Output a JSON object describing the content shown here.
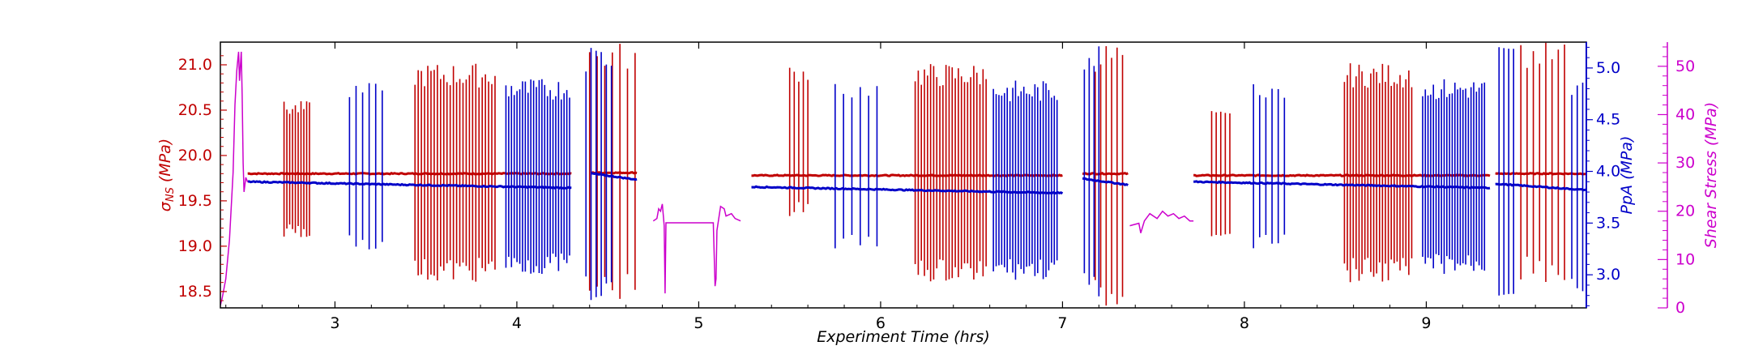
{
  "chart_data": {
    "type": "line",
    "x_axis": {
      "label": "Experiment Time (hrs)",
      "range": [
        2.37,
        9.88
      ],
      "ticks": [
        3,
        4,
        5,
        6,
        7,
        8,
        9
      ],
      "tick_labels": [
        "3",
        "4",
        "5",
        "6",
        "7",
        "8",
        "9"
      ]
    },
    "y_axes": [
      {
        "id": "sigma",
        "label": "σNS (MPa)",
        "label_main": "σ",
        "label_sub": "NS",
        "label_rest": " (MPa)",
        "side": "left",
        "color": "#c00000",
        "range": [
          18.32,
          21.25
        ],
        "ticks": [
          18.5,
          19.0,
          19.5,
          20.0,
          20.5,
          21.0
        ],
        "tick_labels": [
          "18.5",
          "19.0",
          "19.5",
          "20.0",
          "20.5",
          "21.0"
        ]
      },
      {
        "id": "ppa",
        "label": "PpA (MPa)",
        "side": "right",
        "color": "#0000c8",
        "range": [
          2.68,
          5.25
        ],
        "ticks": [
          3.0,
          3.5,
          4.0,
          4.5,
          5.0
        ],
        "tick_labels": [
          "3.0",
          "3.5",
          "4.0",
          "4.5",
          "5.0"
        ]
      },
      {
        "id": "shear",
        "label": "Shear Stress (MPa)",
        "side": "right-offset",
        "color": "#cc00cc",
        "range": [
          0,
          55
        ],
        "ticks": [
          0,
          10,
          20,
          30,
          40,
          50
        ],
        "tick_labels": [
          "0",
          "10",
          "20",
          "30",
          "40",
          "50"
        ]
      }
    ],
    "series": [
      {
        "axis": "sigma",
        "color": "#c00000",
        "baselines": [
          {
            "x0": 2.52,
            "x1": 4.3,
            "y": 19.8
          },
          {
            "x0": 4.41,
            "x1": 4.66,
            "y": 19.81
          },
          {
            "x0": 5.29,
            "x1": 7.0,
            "y": 19.78
          },
          {
            "x0": 7.11,
            "x1": 7.36,
            "y": 19.8
          },
          {
            "x0": 7.72,
            "x1": 9.35,
            "y": 19.78
          },
          {
            "x0": 9.38,
            "x1": 9.88,
            "y": 19.8
          }
        ],
        "spike_groups": [
          {
            "x0": 2.72,
            "x1": 2.86,
            "n": 10,
            "lo": 19.1,
            "hi": 20.6
          },
          {
            "x0": 3.44,
            "x1": 3.88,
            "n": 26,
            "lo": 18.6,
            "hi": 21.02
          },
          {
            "x0": 4.4,
            "x1": 4.65,
            "n": 7,
            "lo": 18.4,
            "hi": 21.25
          },
          {
            "x0": 5.5,
            "x1": 5.6,
            "n": 5,
            "lo": 19.3,
            "hi": 21.0
          },
          {
            "x0": 6.19,
            "x1": 6.58,
            "n": 24,
            "lo": 18.6,
            "hi": 21.02
          },
          {
            "x0": 7.18,
            "x1": 7.33,
            "n": 6,
            "lo": 18.3,
            "hi": 21.25
          },
          {
            "x0": 7.82,
            "x1": 7.92,
            "n": 5,
            "lo": 19.1,
            "hi": 20.5
          },
          {
            "x0": 8.55,
            "x1": 8.92,
            "n": 24,
            "lo": 18.6,
            "hi": 21.02
          },
          {
            "x0": 9.52,
            "x1": 9.76,
            "n": 8,
            "lo": 18.6,
            "hi": 21.25
          }
        ]
      },
      {
        "axis": "ppa",
        "color": "#0000c8",
        "baselines": [
          {
            "x0": 2.52,
            "x1": 4.3,
            "y": 3.9
          },
          {
            "x0": 4.41,
            "x1": 4.66,
            "y": 3.98
          },
          {
            "x0": 5.29,
            "x1": 7.0,
            "y": 3.85
          },
          {
            "x0": 7.11,
            "x1": 7.36,
            "y": 3.93
          },
          {
            "x0": 7.72,
            "x1": 9.35,
            "y": 3.9
          },
          {
            "x0": 9.38,
            "x1": 9.88,
            "y": 3.88
          }
        ],
        "spike_groups": [
          {
            "x0": 3.08,
            "x1": 3.26,
            "n": 6,
            "lo": 3.2,
            "hi": 4.9
          },
          {
            "x0": 3.94,
            "x1": 4.29,
            "n": 24,
            "lo": 3.0,
            "hi": 4.9
          },
          {
            "x0": 4.38,
            "x1": 4.52,
            "n": 6,
            "lo": 2.7,
            "hi": 5.25
          },
          {
            "x0": 5.75,
            "x1": 5.98,
            "n": 6,
            "lo": 3.2,
            "hi": 4.9
          },
          {
            "x0": 6.62,
            "x1": 6.97,
            "n": 24,
            "lo": 2.95,
            "hi": 4.88
          },
          {
            "x0": 7.12,
            "x1": 7.2,
            "n": 4,
            "lo": 2.75,
            "hi": 5.25
          },
          {
            "x0": 8.05,
            "x1": 8.22,
            "n": 6,
            "lo": 3.2,
            "hi": 4.9
          },
          {
            "x0": 8.98,
            "x1": 9.32,
            "n": 24,
            "lo": 3.0,
            "hi": 4.9
          },
          {
            "x0": 9.4,
            "x1": 9.48,
            "n": 4,
            "lo": 2.75,
            "hi": 5.25
          },
          {
            "x0": 9.8,
            "x1": 9.86,
            "n": 3,
            "lo": 2.8,
            "hi": 4.9
          }
        ]
      },
      {
        "axis": "shear",
        "color": "#cc00cc",
        "polylines": [
          [
            [
              2.37,
              0.5
            ],
            [
              2.38,
              2
            ],
            [
              2.4,
              6
            ],
            [
              2.42,
              14
            ],
            [
              2.44,
              28
            ],
            [
              2.45,
              42
            ],
            [
              2.46,
              49
            ],
            [
              2.465,
              51
            ],
            [
              2.47,
              53
            ],
            [
              2.475,
              47
            ],
            [
              2.48,
              50
            ],
            [
              2.485,
              53
            ],
            [
              2.49,
              44
            ],
            [
              2.495,
              30
            ],
            [
              2.5,
              24
            ],
            [
              2.51,
              27
            ],
            [
              2.52,
              26
            ]
          ],
          [
            [
              4.75,
              18
            ],
            [
              4.77,
              18.5
            ],
            [
              4.78,
              20.5
            ],
            [
              4.79,
              20
            ],
            [
              4.8,
              21.5
            ],
            [
              4.81,
              17
            ],
            [
              4.815,
              3
            ],
            [
              4.82,
              17.6
            ],
            [
              5.08,
              17.6
            ],
            [
              5.09,
              4.5
            ],
            [
              5.095,
              6
            ],
            [
              5.1,
              16
            ],
            [
              5.12,
              21
            ],
            [
              5.14,
              20.5
            ],
            [
              5.15,
              19
            ],
            [
              5.18,
              19.5
            ],
            [
              5.2,
              18.5
            ],
            [
              5.23,
              18
            ]
          ],
          [
            [
              7.37,
              17
            ],
            [
              7.42,
              17.5
            ],
            [
              7.43,
              15.5
            ],
            [
              7.45,
              18
            ],
            [
              7.48,
              19.5
            ],
            [
              7.52,
              18.5
            ],
            [
              7.55,
              20
            ],
            [
              7.58,
              19
            ],
            [
              7.61,
              19.5
            ],
            [
              7.64,
              18.5
            ],
            [
              7.67,
              19
            ],
            [
              7.7,
              18
            ],
            [
              7.72,
              18
            ]
          ]
        ]
      }
    ]
  }
}
